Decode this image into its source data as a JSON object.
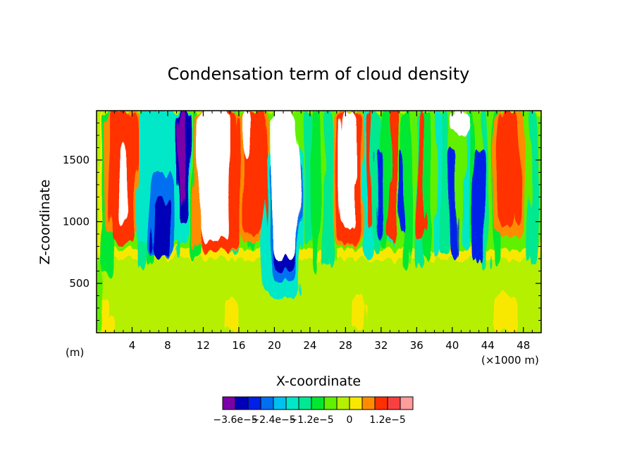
{
  "chart_data": {
    "type": "heatmap",
    "title": "Condensation term of cloud density",
    "xlabel": "X-coordinate",
    "ylabel": "Z-coordinate",
    "x_unit_left": "(m)",
    "x_unit_right": "(×1000 m)",
    "xlim": [
      0,
      50
    ],
    "ylim": [
      100,
      1900
    ],
    "x_ticks": [
      4,
      8,
      12,
      16,
      20,
      24,
      28,
      32,
      36,
      40,
      44,
      48
    ],
    "x_tick_labels": [
      "4",
      "8",
      "12",
      "16",
      "20",
      "24",
      "28",
      "32",
      "36",
      "40",
      "44",
      "48"
    ],
    "y_ticks": [
      500,
      1000,
      1500
    ],
    "y_tick_labels": [
      "500",
      "1000",
      "1500"
    ],
    "legend": {
      "colors": [
        "#7a00a8",
        "#0000b8",
        "#0020e8",
        "#0070f0",
        "#00c0f0",
        "#00e8c8",
        "#00e890",
        "#00e830",
        "#60f000",
        "#b4f000",
        "#f8e800",
        "#ff8c00",
        "#ff3000",
        "#f84040",
        "#ff9c9c"
      ],
      "labels": [
        "−3.6e−5",
        "−2.4e−5",
        "−1.2e−5",
        "0",
        "1.2e−5"
      ]
    },
    "regions": [
      {
        "x": [
          0,
          50
        ],
        "z": [
          100,
          720
        ],
        "level": "0 to 6e-6",
        "color": "#b4f000"
      },
      {
        "x": [
          4.5,
          11
        ],
        "z": [
          700,
          1900
        ],
        "level": "negative (−3.6e−5 to −6e−6)",
        "color": "#0000b8"
      },
      {
        "x": [
          19.5,
          22.5
        ],
        "z": [
          380,
          1900
        ],
        "level": "negative (−3.6e−5 to −6e−6)",
        "color": "#0000b8"
      },
      {
        "x": [
          2.4,
          3.6
        ],
        "z": [
          1000,
          1650
        ],
        "level": "above 1.2e−5",
        "color": "#ffffff"
      },
      {
        "x": [
          11,
          15
        ],
        "z": [
          850,
          1900
        ],
        "level": "above 1.2e−5",
        "color": "#ffffff"
      },
      {
        "x": [
          20,
          22.5
        ],
        "z": [
          700,
          1900
        ],
        "level": "above 1.2e−5",
        "color": "#ffffff"
      },
      {
        "x": [
          27,
          29.5
        ],
        "z": [
          950,
          1900
        ],
        "level": "above 1.2e−5",
        "color": "#ffffff"
      },
      {
        "x": [
          29.5,
          44
        ],
        "z": [
          300,
          1900
        ],
        "level": "−6e−6 to 6e−6",
        "color": "#00e830"
      }
    ]
  }
}
